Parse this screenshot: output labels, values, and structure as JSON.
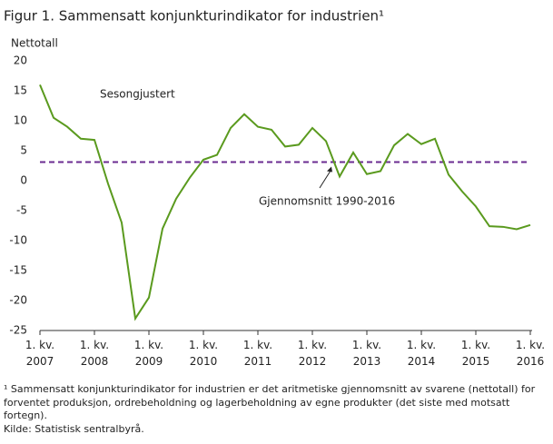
{
  "chart_data": {
    "type": "line",
    "title": "Figur 1. Sammensatt konjunkturindikator for industrien¹",
    "y_label": "Nettotall",
    "annotation": "Sesongjustert",
    "categories": [
      "1. kv. 2007",
      null,
      null,
      null,
      "1. kv. 2008",
      null,
      null,
      null,
      "1. kv. 2009",
      null,
      null,
      null,
      "1. kv. 2010",
      null,
      null,
      null,
      "1. kv. 2011",
      null,
      null,
      null,
      "1. kv. 2012",
      null,
      null,
      null,
      "1. kv. 2013",
      null,
      null,
      null,
      "1. kv. 2014",
      null,
      null,
      null,
      "1. kv. 2015",
      null,
      null,
      null,
      "1. kv. 2016"
    ],
    "series": [
      {
        "name": "Sammensatt konjunkturindikator",
        "color": "#5a9a1e",
        "values": [
          16,
          10.5,
          9,
          7,
          6.8,
          -0.5,
          -7,
          -23,
          -19.5,
          -8,
          -3,
          0.5,
          3.5,
          4.3,
          8.8,
          11.1,
          9,
          8.5,
          5.7,
          6,
          8.8,
          6.6,
          0.7,
          4.7,
          1.1,
          1.6,
          5.9,
          7.8,
          6.1,
          7,
          1,
          -1.8,
          -4.3,
          -7.6,
          -7.7,
          -8.1,
          -7.4
        ]
      }
    ],
    "reference_line": {
      "value": 3.1,
      "label": "Gjennomsnitt 1990-2016",
      "color": "#6b2c91"
    },
    "ylim": [
      -25,
      20
    ],
    "yticks": [
      20,
      15,
      10,
      5,
      0,
      -5,
      -10,
      -15,
      -20,
      -25
    ],
    "grid": false,
    "footnote": "¹ Sammensatt konjunkturindikator  for industrien  er det aritmetiske gjennomsnitt av svarene (nettotall) for forventet produksjon, ordrebeholdning og lagerbeholdning av egne produkter (det siste med motsatt fortegn).",
    "source": "Kilde: Statistisk sentralbyrå."
  }
}
